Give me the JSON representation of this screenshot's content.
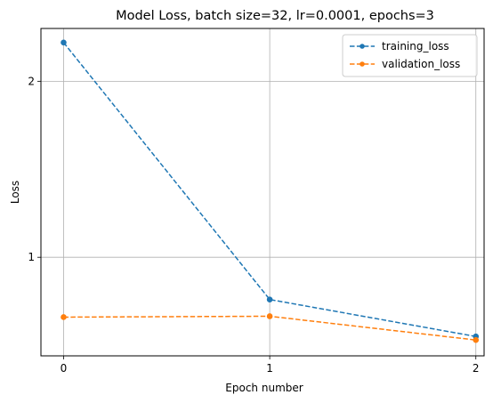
{
  "chart_data": {
    "type": "line",
    "title": "Model Loss, batch size=32, lr=0.0001, epochs=3",
    "xlabel": "Epoch number",
    "ylabel": "Loss",
    "x": [
      0,
      1,
      2
    ],
    "xticks": [
      "0",
      "1",
      "2"
    ],
    "yticks": [
      "1",
      "2"
    ],
    "xlim": [
      -0.11,
      2.04
    ],
    "ylim": [
      0.44,
      2.3
    ],
    "grid": true,
    "legend_position": "top-right",
    "series": [
      {
        "name": "training_loss",
        "values": [
          2.22,
          0.76,
          0.55
        ],
        "color": "#1f77b4",
        "style": "dashed",
        "marker": "circle"
      },
      {
        "name": "validation_loss",
        "values": [
          0.66,
          0.665,
          0.53
        ],
        "color": "#ff7f0e",
        "style": "dashed",
        "marker": "circle"
      }
    ]
  }
}
